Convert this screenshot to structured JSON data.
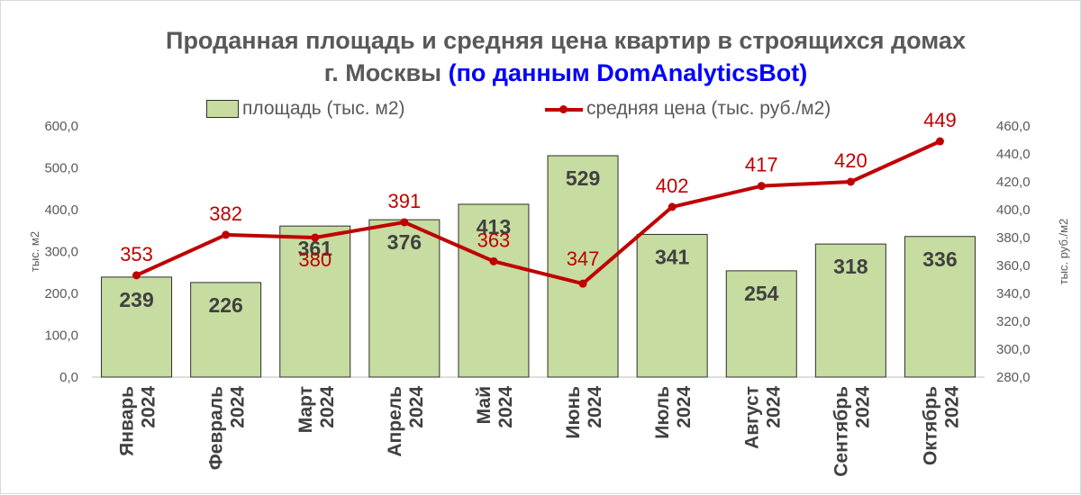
{
  "title_line1": "Проданная площадь и средняя цена квартир в строящихся домах",
  "title_line2_main": "г. Москвы",
  "title_line2_source": "(по данным DomAnalyticsBot)",
  "legend": {
    "area_label": "площадь (тыс. м2)",
    "price_label": "средняя цена (тыс. руб./м2)"
  },
  "colors": {
    "bar_fill": "#c6dca0",
    "bar_stroke": "#2f2f2f",
    "line": "#c00000",
    "bar_label": "#404040",
    "title": "#595959",
    "source": "#0000ff"
  },
  "chart_data": {
    "type": "bar",
    "categories": [
      [
        "Январь",
        "2024"
      ],
      [
        "Февраль",
        "2024"
      ],
      [
        "Март",
        "2024"
      ],
      [
        "Апрель",
        "2024"
      ],
      [
        "Май",
        "2024"
      ],
      [
        "Июнь",
        "2024"
      ],
      [
        "Июль",
        "2024"
      ],
      [
        "Август",
        "2024"
      ],
      [
        "Сентябрь",
        "2024"
      ],
      [
        "Октябрь",
        "2024"
      ]
    ],
    "series": [
      {
        "name": "площадь (тыс. м2)",
        "type": "bar",
        "axis": "left",
        "values": [
          239,
          226,
          361,
          376,
          413,
          529,
          341,
          254,
          318,
          336
        ]
      },
      {
        "name": "средняя цена (тыс. руб./м2)",
        "type": "line",
        "axis": "right",
        "values": [
          353,
          382,
          380,
          391,
          363,
          347,
          402,
          417,
          420,
          449
        ]
      }
    ],
    "ylabel_left": "тыс. м2",
    "ylabel_right": "тыс. руб./м2",
    "ylim_left": [
      0,
      600
    ],
    "ylim_right": [
      280,
      460
    ],
    "yticks_left": [
      "0,0",
      "100,0",
      "200,0",
      "300,0",
      "400,0",
      "500,0",
      "600,0"
    ],
    "yticks_right": [
      "280,0",
      "300,0",
      "320,0",
      "340,0",
      "360,0",
      "380,0",
      "400,0",
      "420,0",
      "440,0",
      "460,0"
    ],
    "legend_position": "top",
    "grid": false
  }
}
